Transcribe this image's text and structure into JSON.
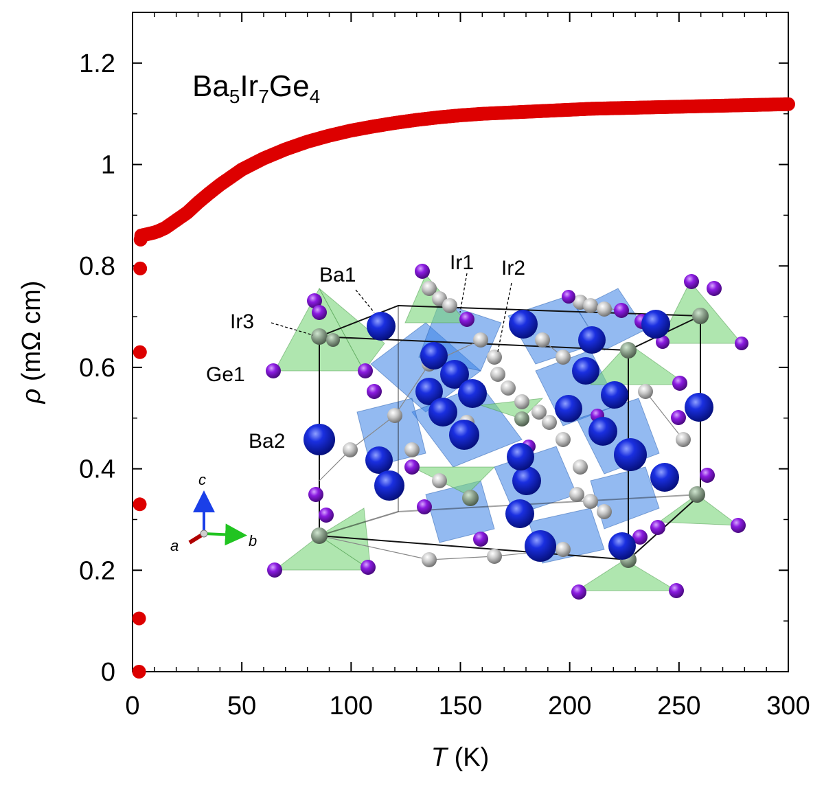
{
  "chart_data": {
    "type": "scatter",
    "title": "",
    "compound": {
      "base1": "Ba",
      "sub1": "5",
      "base2": "Ir",
      "sub2": "7",
      "base3": "Ge",
      "sub3": "4"
    },
    "xlabel": {
      "symbol": "T",
      "unit": "(K)"
    },
    "ylabel": {
      "symbol": "ρ",
      "unit": "(mΩ cm)"
    },
    "xlim": [
      0,
      300
    ],
    "ylim": [
      0,
      1.3
    ],
    "xticks": [
      0,
      50,
      100,
      150,
      200,
      250,
      300
    ],
    "xtick_labels": [
      "0",
      "50",
      "100",
      "150",
      "200",
      "250",
      "300"
    ],
    "yticks": [
      0,
      0.2,
      0.4,
      0.6,
      0.8,
      1.0,
      1.2
    ],
    "ytick_labels": [
      "0",
      "0.2",
      "0.4",
      "0.6",
      "0.8",
      "1",
      "1.2"
    ],
    "grid": false,
    "marker_color": "#dd0000",
    "series": [
      {
        "transition_points": {
          "x": [
            3.0,
            3.0,
            3.3,
            3.4,
            3.5,
            3.7,
            4.0
          ],
          "y": [
            0.0,
            0.105,
            0.33,
            0.63,
            0.795,
            0.852,
            0.858
          ]
        },
        "curve": {
          "x": [
            4,
            6,
            8,
            10,
            12,
            15,
            20,
            25,
            30,
            35,
            40,
            50,
            60,
            70,
            80,
            90,
            100,
            110,
            120,
            130,
            140,
            150,
            160,
            170,
            180,
            190,
            200,
            210,
            220,
            230,
            240,
            250,
            260,
            270,
            280,
            290,
            300
          ],
          "y": [
            0.86,
            0.862,
            0.864,
            0.866,
            0.869,
            0.875,
            0.89,
            0.905,
            0.925,
            0.943,
            0.96,
            0.99,
            1.012,
            1.03,
            1.045,
            1.057,
            1.067,
            1.075,
            1.082,
            1.088,
            1.093,
            1.097,
            1.1,
            1.102,
            1.104,
            1.106,
            1.108,
            1.11,
            1.111,
            1.112,
            1.113,
            1.114,
            1.115,
            1.116,
            1.117,
            1.118,
            1.119
          ]
        }
      }
    ],
    "inset": {
      "description_labels": [
        "Ba1",
        "Ir1",
        "Ir2",
        "Ir3",
        "Ge1",
        "Ba2"
      ],
      "axes": [
        "a",
        "b",
        "c"
      ],
      "colors": {
        "ba": "#1428d8",
        "ir": "#c4c4c4",
        "ge": "#8a1be0",
        "polyhedron_blue": "#3b82e6",
        "polyhedron_green": "#7ad67a",
        "axis_a": "#b00000",
        "axis_b": "#21c421",
        "axis_c": "#1a3fe8"
      }
    }
  }
}
